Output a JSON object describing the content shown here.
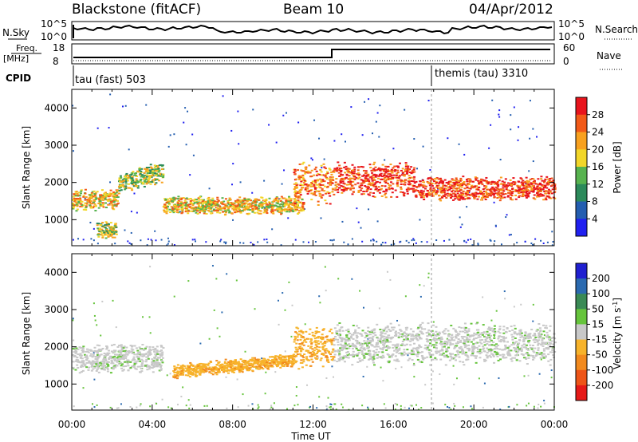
{
  "header": {
    "title": "Blackstone (fitACF)",
    "beam": "Beam 10",
    "date": "04/Apr/2012"
  },
  "top_panels": {
    "nsky_label": "N.Sky",
    "nsearch_label": "N.Search",
    "freq_label_1": "Freq.",
    "freq_label_2": "[MHz]",
    "nave_label": "Nave",
    "cpid_label": "CPID",
    "left_ticks_nsky": [
      "10^5",
      "10^0"
    ],
    "right_ticks_nsky": [
      "10^5",
      "10^0"
    ],
    "left_ticks_freq": [
      "18",
      "8"
    ],
    "right_ticks_nave": [
      "60",
      "0"
    ],
    "cpid_1": "tau (fast) 503",
    "cpid_2": "themis (tau) 3310"
  },
  "axes": {
    "ylabel": "Slant Range [km]",
    "xlabel": "Time UT",
    "x_ticks": [
      "00:00",
      "04:00",
      "08:00",
      "12:00",
      "16:00",
      "20:00",
      "00:00"
    ],
    "y_ticks": [
      "1000",
      "2000",
      "3000",
      "4000"
    ]
  },
  "power_colorbar": {
    "label": "Power [dB]",
    "ticks": [
      "28",
      "24",
      "20",
      "16",
      "12",
      "8",
      "4"
    ],
    "colors": [
      "#e8141d",
      "#f25a18",
      "#f8a11f",
      "#f2d629",
      "#57b34f",
      "#2c8a5b",
      "#245eb0",
      "#2020f0"
    ]
  },
  "velocity_colorbar": {
    "label_main": "Velocity [m s",
    "label_sup": "-1",
    "label_end": "]",
    "ticks": [
      "200",
      "100",
      "50",
      "15",
      "-15",
      "-50",
      "-100",
      "-200"
    ],
    "colors": [
      "#2020d0",
      "#2b6ab0",
      "#3a8a55",
      "#66c43c",
      "#c8c8c8",
      "#f7b32b",
      "#f28a1e",
      "#ee5518",
      "#e61a18"
    ]
  },
  "chart_data": {
    "type": "heatmap",
    "x_range_hours": [
      0,
      24
    ],
    "y_range_km": [
      300,
      4500
    ],
    "power_bands": [
      {
        "x": [
          0.0,
          2.3
        ],
        "y": [
          1250,
          1850
        ],
        "level": 4
      },
      {
        "x": [
          2.3,
          4.5
        ],
        "y": [
          1700,
          2300
        ],
        "level": 3
      },
      {
        "x": [
          1.2,
          2.2
        ],
        "y": [
          500,
          1000
        ],
        "level": 3
      },
      {
        "x": [
          4.5,
          11.5
        ],
        "y": [
          1150,
          1650
        ],
        "level": 4
      },
      {
        "x": [
          11.0,
          13.0
        ],
        "y": [
          1400,
          2600
        ],
        "level": 5
      },
      {
        "x": [
          13.0,
          17.0
        ],
        "y": [
          1600,
          2600
        ],
        "level": 6
      },
      {
        "x": [
          17.0,
          24.0
        ],
        "y": [
          1500,
          2200
        ],
        "level": 6
      }
    ],
    "velocity_bands": [
      {
        "x": [
          0.0,
          4.5
        ],
        "y": [
          1300,
          2100
        ],
        "class": "-15 to 15"
      },
      {
        "x": [
          5.0,
          11.0
        ],
        "y": [
          1150,
          1550
        ],
        "class": "-50 to -15"
      },
      {
        "x": [
          11.0,
          13.0
        ],
        "y": [
          1400,
          2600
        ],
        "class": "-50 to -15"
      },
      {
        "x": [
          13.0,
          24.0
        ],
        "y": [
          1500,
          2700
        ],
        "class": "-15 to 15"
      }
    ],
    "frequency_step_time_hours": 13,
    "cpid_change_time_hours": 18
  }
}
